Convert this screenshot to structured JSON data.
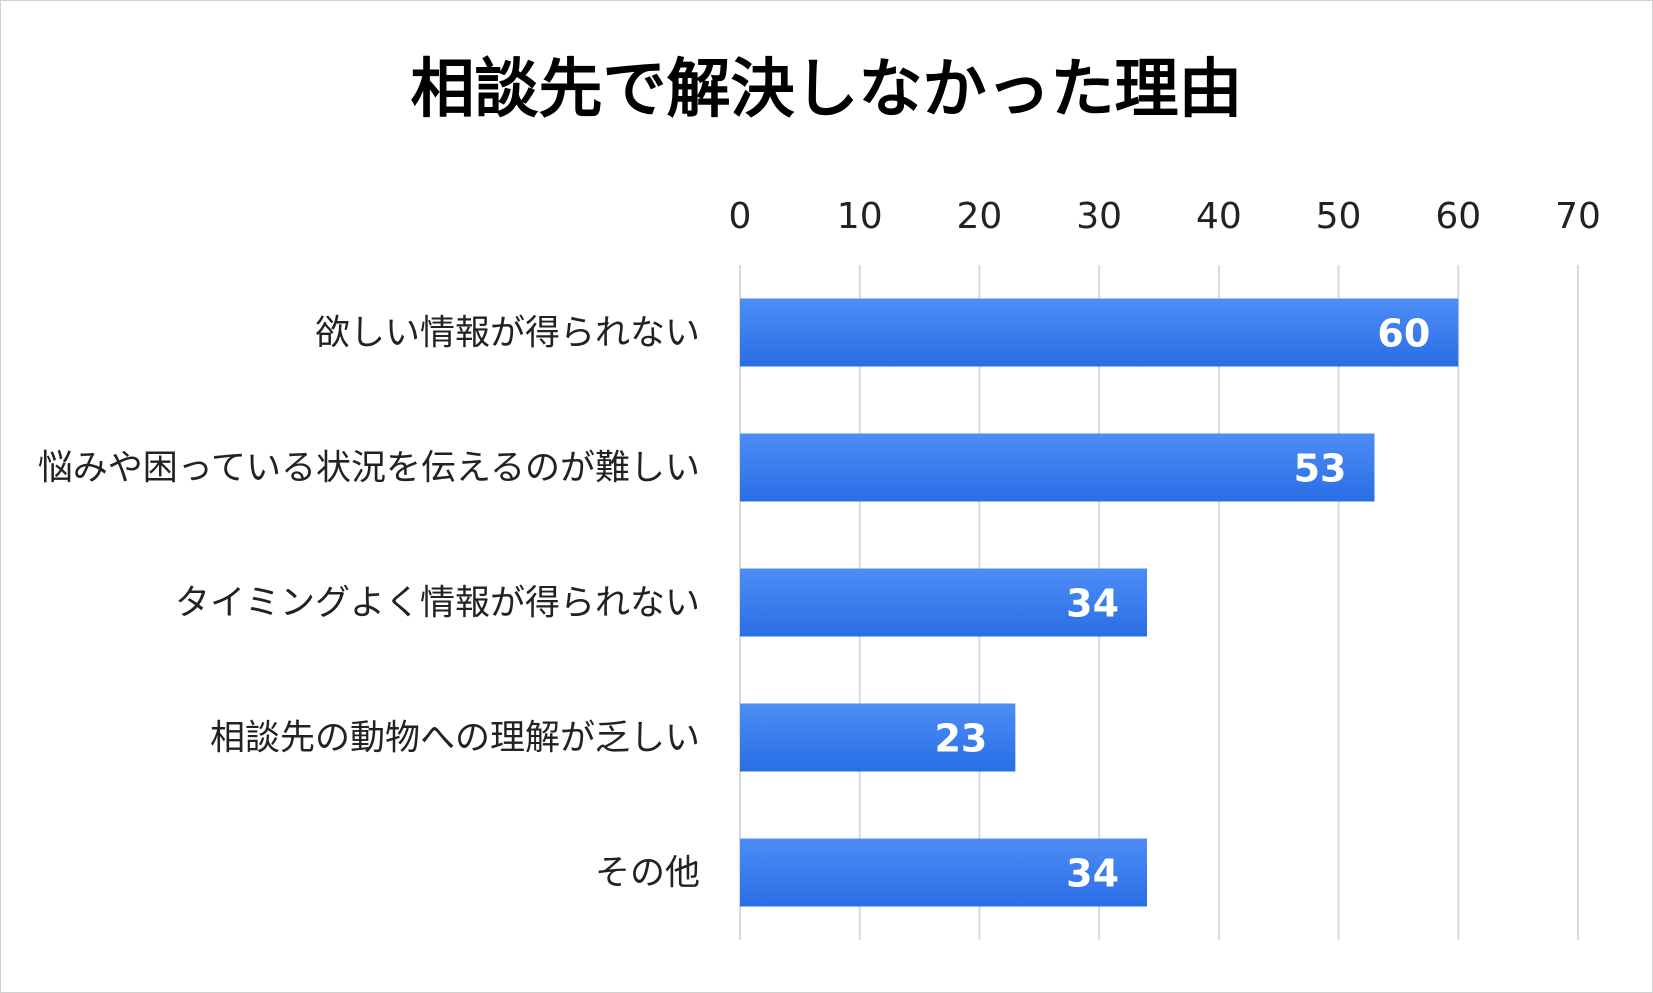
{
  "chart_data": {
    "type": "bar",
    "orientation": "horizontal",
    "title": "相談先で解決しなかった理由",
    "categories": [
      "欲しい情報が得られない",
      "悩みや困っている状況を伝えるのが難しい",
      "タイミングよく情報が得られない",
      "相談先の動物への理解が乏しい",
      "その他"
    ],
    "values": [
      60,
      53,
      34,
      23,
      34
    ],
    "xlim": [
      0,
      70
    ],
    "xticks": [
      0,
      10,
      20,
      30,
      40,
      50,
      60,
      70
    ],
    "xaxis_position": "top",
    "grid": true,
    "data_labels": true,
    "legend": "none",
    "colors": {
      "bar_top": "#4d8df5",
      "bar_bottom": "#2a6ee6",
      "grid": "#d9d9d9",
      "data_label": "#ffffff"
    }
  }
}
